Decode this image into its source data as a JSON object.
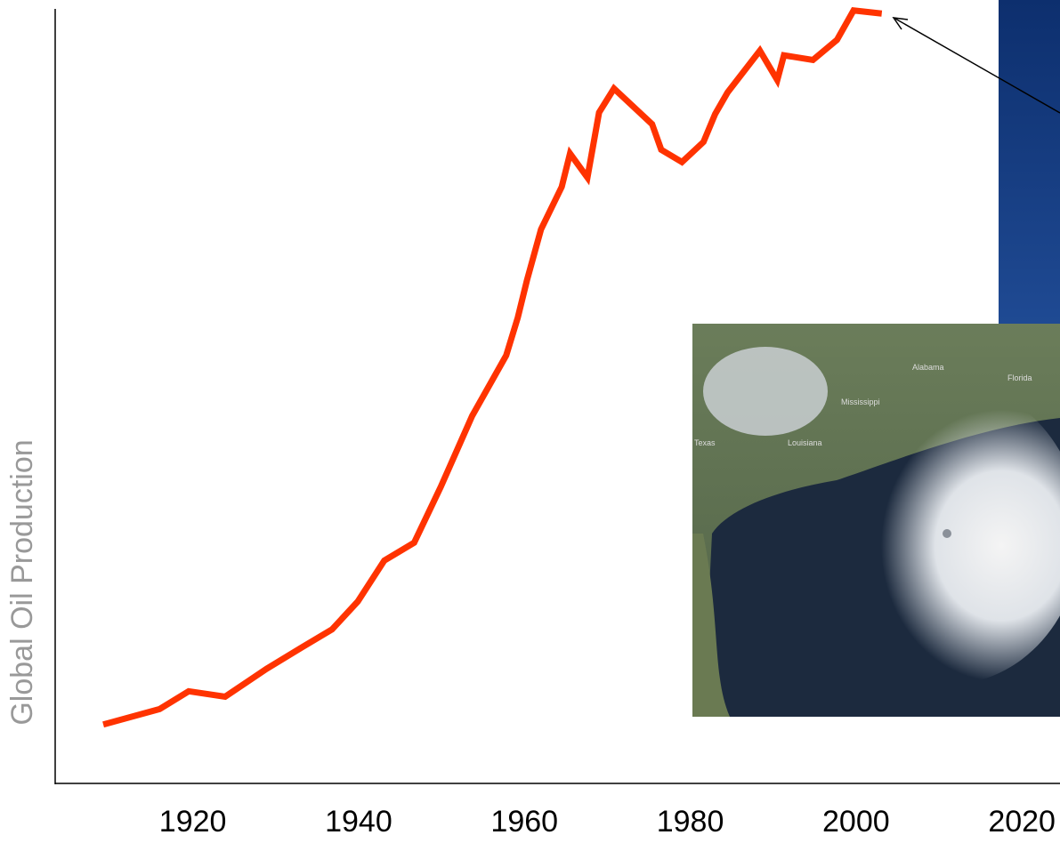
{
  "chart_data": {
    "type": "line",
    "y_label": "Global Oil Production",
    "x": [
      1909.2,
      1916.0,
      1919.5,
      1923.9,
      1928.9,
      1933.2,
      1936.8,
      1939.9,
      1943.1,
      1946.7,
      1949.9,
      1953.7,
      1957.8,
      1959.2,
      1960.3,
      1962.0,
      1964.5,
      1965.5,
      1967.6,
      1969.0,
      1970.8,
      1975.4,
      1976.5,
      1979.0,
      1981.6,
      1983.0,
      1984.5,
      1988.4,
      1990.5,
      1991.3,
      1994.8,
      1997.7,
      1999.7,
      2003.1
    ],
    "series": [
      {
        "color": "#ff3300",
        "values": [
          7.5,
          9.5,
          11.8,
          11.1,
          14.7,
          17.5,
          19.8,
          23.4,
          28.7,
          31.0,
          38.2,
          47.4,
          55.2,
          60.1,
          64.9,
          71.5,
          77.0,
          81.3,
          78.2,
          86.6,
          89.7,
          85.1,
          81.8,
          80.2,
          82.8,
          86.4,
          89.2,
          94.6,
          90.8,
          94.0,
          93.4,
          96.0,
          99.8,
          99.4
        ]
      }
    ],
    "xlim": [
      1903.4,
      2024.6
    ],
    "xticks": [
      1920,
      1940,
      1960,
      1980,
      2000,
      2020
    ],
    "ylim": [
      0,
      100
    ],
    "grid": false
  },
  "image": {
    "labels": [
      "Alabama",
      "Florida",
      "Mississippi",
      "Louisiana",
      "Texas"
    ]
  }
}
